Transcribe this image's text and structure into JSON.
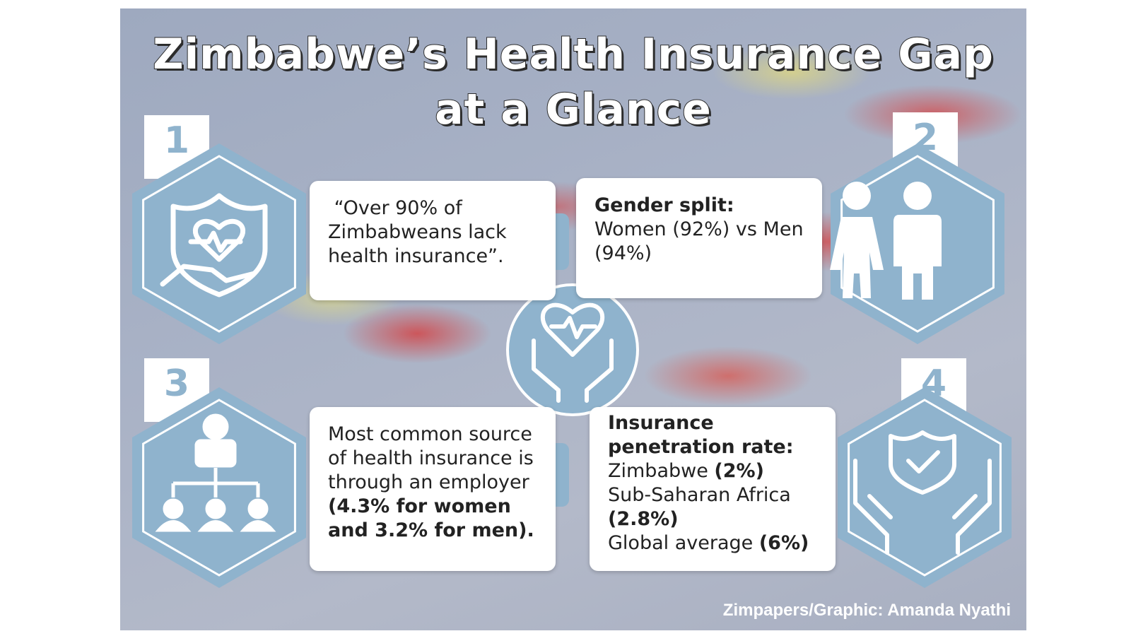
{
  "title": [
    "Zimbabwe’s Health Insurance Gap",
    "at a Glance"
  ],
  "panels": [
    {
      "number": "1",
      "lines": [
        [
          {
            "text": " “Over 90% of",
            "bold": false
          }
        ],
        [
          {
            "text": "Zimbabweans lack",
            "bold": false
          }
        ],
        [
          {
            "text": "health insurance”.",
            "bold": false
          }
        ]
      ]
    },
    {
      "number": "2",
      "lines": [
        [
          {
            "text": "Gender split:",
            "bold": true
          }
        ],
        [
          {
            "text": "Women (92%) vs Men",
            "bold": false
          }
        ],
        [
          {
            "text": "(94%)",
            "bold": false
          }
        ]
      ]
    },
    {
      "number": "3",
      "lines": [
        [
          {
            "text": "Most common source",
            "bold": false
          }
        ],
        [
          {
            "text": "of health insurance is",
            "bold": false
          }
        ],
        [
          {
            "text": "through an employer",
            "bold": false
          }
        ],
        [
          {
            "text": "(4.3% for women",
            "bold": true
          }
        ],
        [
          {
            "text": "and 3.2% for men).",
            "bold": true
          }
        ]
      ]
    },
    {
      "number": "4",
      "lines": [
        [
          {
            "text": "Insurance",
            "bold": true
          }
        ],
        [
          {
            "text": "penetration rate:",
            "bold": true
          }
        ],
        [
          {
            "text": "Zimbabwe ",
            "bold": false
          },
          {
            "text": "(2%)",
            "bold": true
          }
        ],
        [
          {
            "text": "Sub-Saharan Africa",
            "bold": false
          }
        ],
        [
          {
            "text": "(2.8%)",
            "bold": true
          }
        ],
        [
          {
            "text": "Global average ",
            "bold": false
          },
          {
            "text": "(6%)",
            "bold": true
          }
        ]
      ]
    }
  ],
  "credit": "Zimpapers/Graphic:  Amanda Nyathi"
}
